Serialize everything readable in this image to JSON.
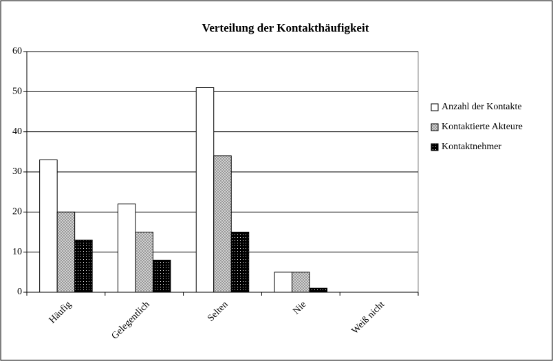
{
  "chart_data": {
    "type": "bar",
    "title": "Verteilung der Kontakthäufigkeit",
    "categories": [
      "Häufig",
      "Gelegentlich",
      "Selten",
      "Nie",
      "Weiß nicht"
    ],
    "series": [
      {
        "name": "Anzahl der Kontakte",
        "color": "#ffffff",
        "values": [
          33,
          22,
          51,
          5,
          0
        ]
      },
      {
        "name": "Kontaktierte Akteure",
        "color": "#9a9a9a",
        "values": [
          20,
          15,
          34,
          5,
          0
        ]
      },
      {
        "name": "Kontaktnehmer",
        "color": "#000000",
        "values": [
          13,
          8,
          15,
          1,
          0
        ]
      }
    ],
    "ylim": [
      0,
      60
    ],
    "yticks": [
      0,
      10,
      20,
      30,
      40,
      50,
      60
    ],
    "grid": true,
    "legend": "right"
  }
}
